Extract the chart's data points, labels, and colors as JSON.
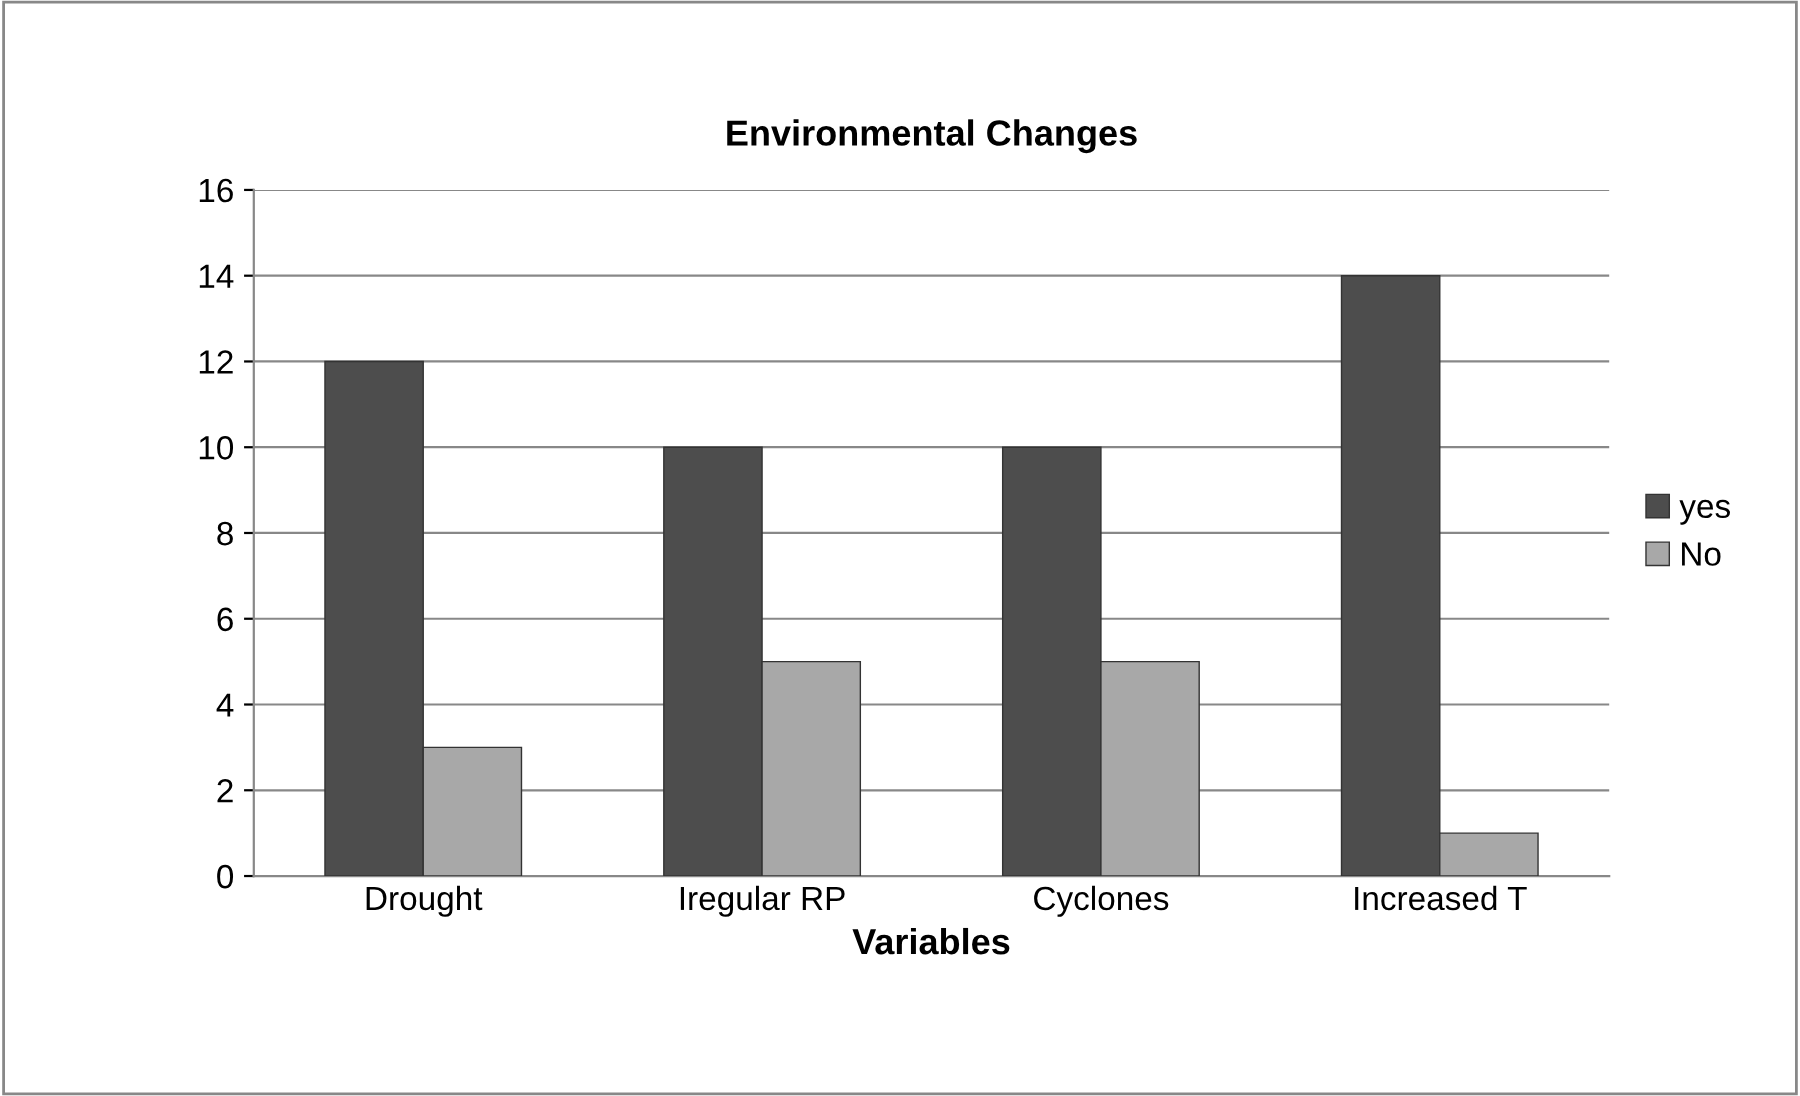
{
  "chart_data": {
    "type": "bar",
    "title": "Environmental Changes",
    "xlabel": "Variables",
    "categories": [
      "Drought",
      "Iregular RP",
      "Cyclones",
      "Increased T"
    ],
    "series": [
      {
        "name": "yes",
        "color": "#4d4d4d",
        "values": [
          12,
          10,
          10,
          14
        ]
      },
      {
        "name": "No",
        "color": "#a8a8a8",
        "values": [
          3,
          5,
          5,
          1
        ]
      }
    ],
    "ylim": [
      0,
      16
    ],
    "yticks": [
      0,
      2,
      4,
      6,
      8,
      10,
      12,
      14,
      16
    ],
    "grid": "y",
    "legend": "right"
  }
}
